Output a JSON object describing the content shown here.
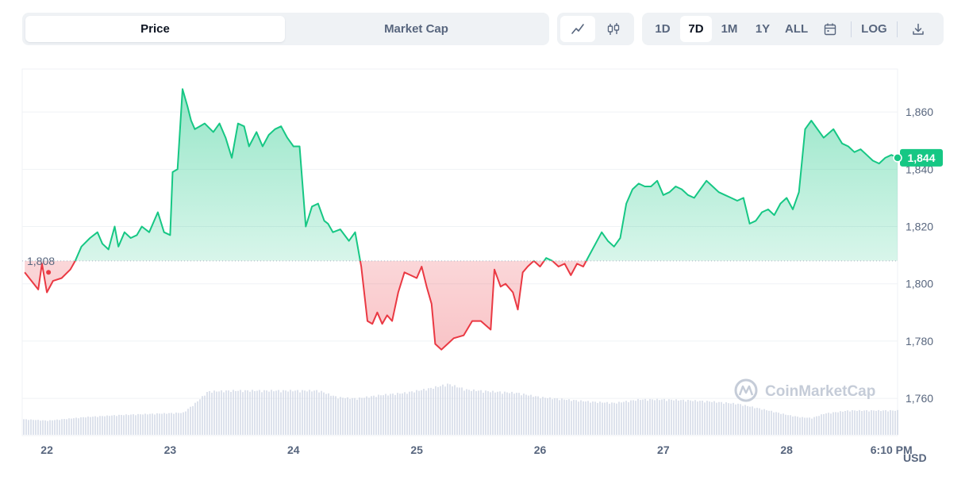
{
  "toolbar": {
    "chart_types": [
      {
        "label": "Price",
        "active": true
      },
      {
        "label": "Market Cap",
        "active": false
      }
    ],
    "styles": [
      {
        "icon": "line-chart-icon",
        "active": true
      },
      {
        "icon": "candlestick-icon",
        "active": false
      }
    ],
    "ranges": [
      {
        "label": "1D",
        "active": false
      },
      {
        "label": "7D",
        "active": true
      },
      {
        "label": "1M",
        "active": false
      },
      {
        "label": "1Y",
        "active": false
      },
      {
        "label": "ALL",
        "active": false
      }
    ],
    "calendar_icon": "calendar-icon",
    "log_label": "LOG",
    "download_icon": "download-icon"
  },
  "watermark": "CoinMarketCap",
  "colors": {
    "up": "#16c784",
    "down": "#ea3943",
    "grid": "#eff2f5",
    "volume": "#cfd6e4"
  },
  "chart_data": {
    "type": "area",
    "currency_label": "USD",
    "baseline": 1808,
    "baseline_label": "1,808",
    "current_label": "1,844",
    "y_ticks": [
      1760,
      1780,
      1800,
      1820,
      1840,
      1860
    ],
    "y_tick_labels": [
      "1,760",
      "1,780",
      "1,800",
      "1,820",
      "1,840",
      "1,860"
    ],
    "ylim": [
      1747,
      1875
    ],
    "xlim": [
      21.8,
      28.9
    ],
    "x_ticks": [
      22,
      23,
      24,
      25,
      26,
      27,
      28,
      28.85
    ],
    "x_tick_labels": [
      "22",
      "23",
      "24",
      "25",
      "26",
      "27",
      "28",
      "6:10 PM"
    ],
    "series": [
      {
        "x": [
          21.82,
          21.93,
          21.96,
          22.0,
          22.05,
          22.12,
          22.19,
          22.23,
          22.28,
          22.35,
          22.41,
          22.45,
          22.5,
          22.55,
          22.58,
          22.63,
          22.68,
          22.73,
          22.77,
          22.83,
          22.9,
          22.95,
          23.0,
          23.02,
          23.06,
          23.1,
          23.14,
          23.17,
          23.2,
          23.24,
          23.28,
          23.35,
          23.4,
          23.45,
          23.5,
          23.55,
          23.6,
          23.64,
          23.7,
          23.75,
          23.8,
          23.85,
          23.9,
          23.95,
          24.0,
          24.05,
          24.1,
          24.15,
          24.2,
          24.25,
          24.28,
          24.32,
          24.38,
          24.45,
          24.5,
          24.55,
          24.6,
          24.64,
          24.68,
          24.72,
          24.76,
          24.8,
          24.85,
          24.9,
          24.95,
          25.0,
          25.04,
          25.08,
          25.12,
          25.15,
          25.2,
          25.25,
          25.3,
          25.38,
          25.45,
          25.52,
          25.6,
          25.63,
          25.68,
          25.72,
          25.78,
          25.82,
          25.86,
          25.9,
          25.95,
          26.0,
          26.05,
          26.1,
          26.15,
          26.2,
          26.25,
          26.3,
          26.35,
          26.4,
          26.45,
          26.5,
          26.55,
          26.6,
          26.65,
          26.7,
          26.75,
          26.8,
          26.85,
          26.9,
          26.95,
          27.0,
          27.05,
          27.1,
          27.15,
          27.2,
          27.25,
          27.3,
          27.35,
          27.4,
          27.45,
          27.5,
          27.55,
          27.6,
          27.65,
          27.7,
          27.75,
          27.8,
          27.85,
          27.9,
          27.95,
          28.0,
          28.05,
          28.1,
          28.15,
          28.2,
          28.3,
          28.38,
          28.45,
          28.5,
          28.55,
          28.6,
          28.65,
          28.7,
          28.75,
          28.8,
          28.85,
          28.9
        ],
        "y": [
          1804,
          1798,
          1807,
          1797,
          1801,
          1802,
          1805,
          1808,
          1813,
          1816,
          1818,
          1814,
          1812,
          1820,
          1813,
          1818,
          1816,
          1817,
          1820,
          1818,
          1825,
          1818,
          1817,
          1839,
          1840,
          1868,
          1862,
          1857,
          1854,
          1855,
          1856,
          1853,
          1856,
          1851,
          1844,
          1856,
          1855,
          1848,
          1853,
          1848,
          1852,
          1854,
          1855,
          1851,
          1848,
          1848,
          1820,
          1827,
          1828,
          1822,
          1821,
          1818,
          1819,
          1815,
          1818,
          1806,
          1787,
          1786,
          1790,
          1786,
          1789,
          1787,
          1797,
          1804,
          1803,
          1802,
          1806,
          1799,
          1793,
          1779,
          1777,
          1779,
          1781,
          1782,
          1787,
          1787,
          1784,
          1805,
          1799,
          1800,
          1797,
          1791,
          1804,
          1806,
          1808,
          1806,
          1809,
          1808,
          1806,
          1807,
          1803,
          1807,
          1806,
          1810,
          1814,
          1818,
          1815,
          1813,
          1816,
          1828,
          1833,
          1835,
          1834,
          1834,
          1836,
          1831,
          1832,
          1834,
          1833,
          1831,
          1830,
          1833,
          1836,
          1834,
          1832,
          1831,
          1830,
          1829,
          1830,
          1821,
          1822,
          1825,
          1826,
          1824,
          1828,
          1830,
          1826,
          1832,
          1854,
          1857,
          1851,
          1854,
          1849,
          1848,
          1846,
          1847,
          1845,
          1843,
          1842,
          1844,
          1845,
          1844
        ]
      }
    ],
    "volume": {
      "x": [
        21.82,
        22.0,
        22.3,
        22.6,
        22.9,
        23.1,
        23.2,
        23.3,
        23.5,
        23.8,
        24.0,
        24.2,
        24.35,
        24.5,
        24.7,
        24.9,
        25.0,
        25.1,
        25.25,
        25.4,
        25.6,
        25.8,
        26.0,
        26.2,
        26.4,
        26.6,
        26.8,
        27.0,
        27.2,
        27.4,
        27.6,
        27.8,
        28.0,
        28.1,
        28.2,
        28.3,
        28.5,
        28.7,
        28.9
      ],
      "values": [
        0.35,
        0.32,
        0.4,
        0.45,
        0.48,
        0.5,
        0.72,
        0.98,
        1.0,
        1.0,
        1.0,
        1.0,
        0.85,
        0.82,
        0.9,
        0.95,
        1.0,
        1.05,
        1.15,
        1.02,
        0.98,
        0.95,
        0.85,
        0.8,
        0.75,
        0.72,
        0.8,
        0.8,
        0.78,
        0.75,
        0.7,
        0.58,
        0.45,
        0.4,
        0.38,
        0.48,
        0.55,
        0.55,
        0.55
      ]
    }
  }
}
